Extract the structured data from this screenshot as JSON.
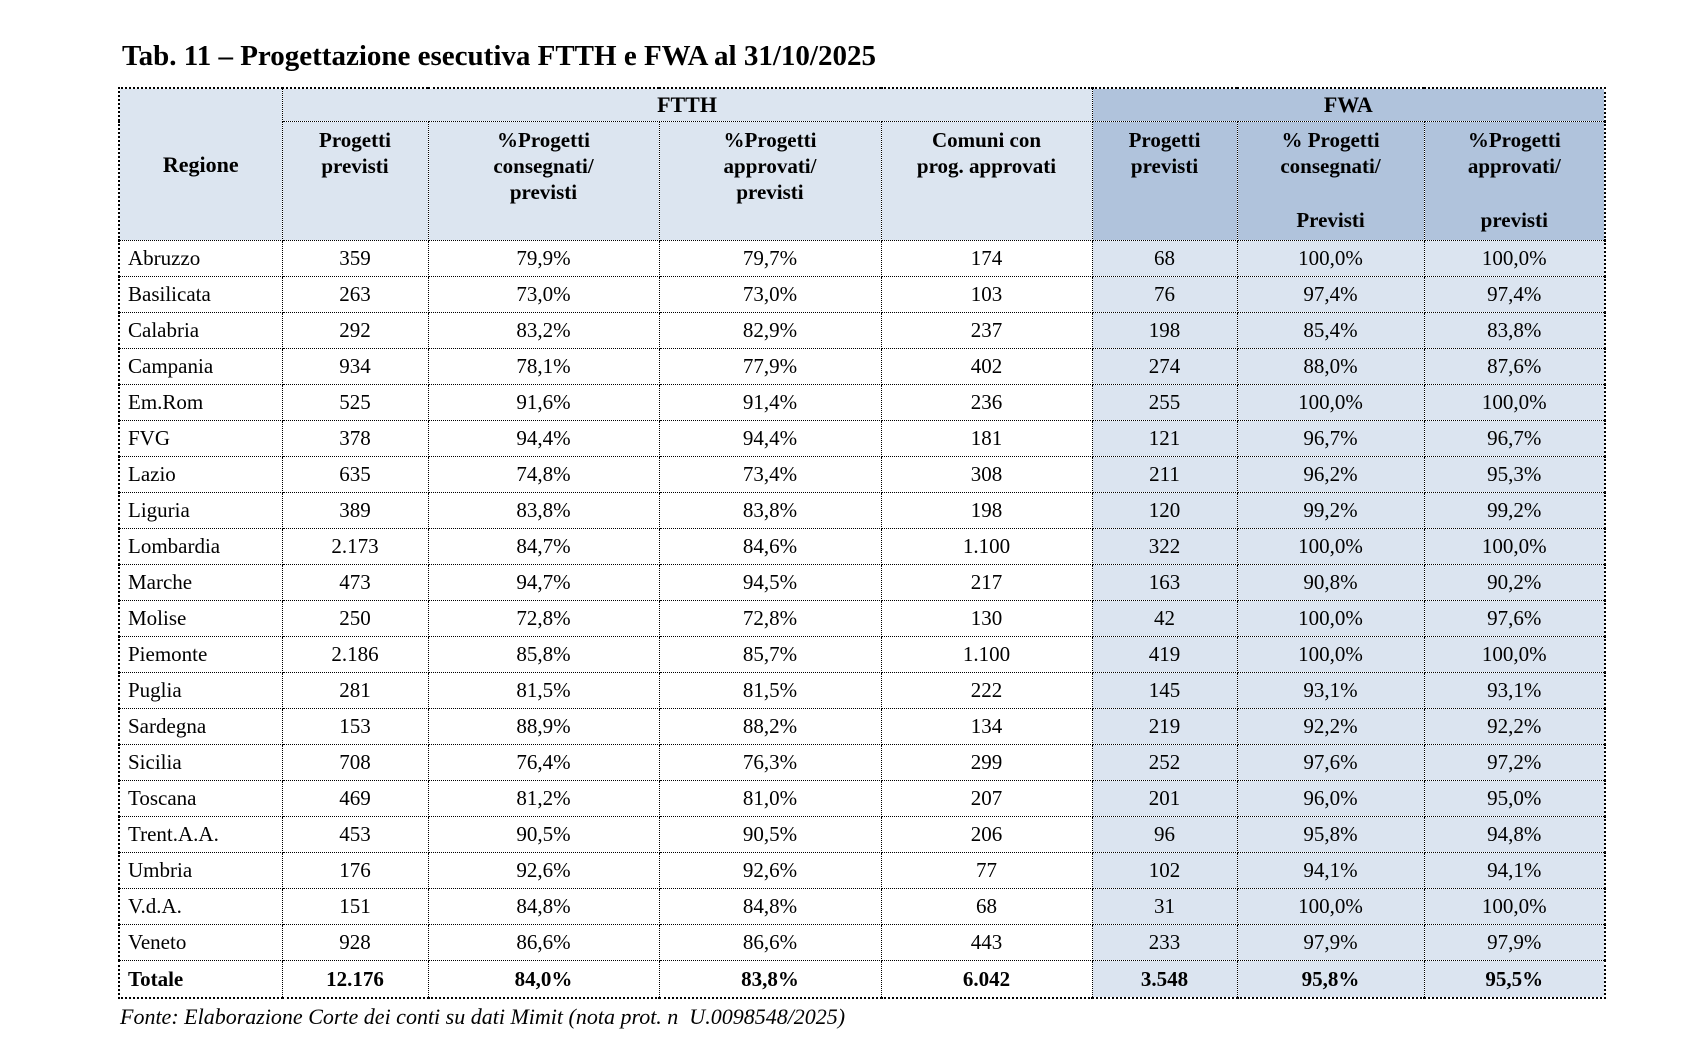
{
  "title": "Tab. 11 – Progettazione esecutiva FTTH e FWA al 31/10/2025",
  "source": "Fonte: Elaborazione Corte dei conti su dati Mimit (nota prot. n  U.0098548/2025)",
  "colors": {
    "header_light": "#dce5f0",
    "header_dark": "#b0c3dc",
    "fwa_cell": "#dbe4f0"
  },
  "header": {
    "region": "Regione",
    "groups": [
      {
        "label": "FTTH"
      },
      {
        "label": "FWA"
      }
    ],
    "cols": [
      {
        "group": "ftth",
        "top": "Progetti\nprevisti",
        "bottom": ""
      },
      {
        "group": "ftth",
        "top": "%Progetti\nconsegnati/\nprevisti",
        "bottom": ""
      },
      {
        "group": "ftth",
        "top": "%Progetti\napprovati/\nprevisti",
        "bottom": ""
      },
      {
        "group": "ftth",
        "top": "Comuni con\nprog. approvati",
        "bottom": ""
      },
      {
        "group": "fwa",
        "top": "Progetti\nprevisti",
        "bottom": ""
      },
      {
        "group": "fwa",
        "top": "% Progetti\nconsegnati/",
        "bottom": "Previsti"
      },
      {
        "group": "fwa",
        "top": "%Progetti\napprovati/",
        "bottom": "previsti"
      }
    ]
  },
  "rows": [
    [
      "Abruzzo",
      "359",
      "79,9%",
      "79,7%",
      "174",
      "68",
      "100,0%",
      "100,0%"
    ],
    [
      "Basilicata",
      "263",
      "73,0%",
      "73,0%",
      "103",
      "76",
      "97,4%",
      "97,4%"
    ],
    [
      "Calabria",
      "292",
      "83,2%",
      "82,9%",
      "237",
      "198",
      "85,4%",
      "83,8%"
    ],
    [
      "Campania",
      "934",
      "78,1%",
      "77,9%",
      "402",
      "274",
      "88,0%",
      "87,6%"
    ],
    [
      "Em.Rom",
      "525",
      "91,6%",
      "91,4%",
      "236",
      "255",
      "100,0%",
      "100,0%"
    ],
    [
      "FVG",
      "378",
      "94,4%",
      "94,4%",
      "181",
      "121",
      "96,7%",
      "96,7%"
    ],
    [
      "Lazio",
      "635",
      "74,8%",
      "73,4%",
      "308",
      "211",
      "96,2%",
      "95,3%"
    ],
    [
      "Liguria",
      "389",
      "83,8%",
      "83,8%",
      "198",
      "120",
      "99,2%",
      "99,2%"
    ],
    [
      "Lombardia",
      "2.173",
      "84,7%",
      "84,6%",
      "1.100",
      "322",
      "100,0%",
      "100,0%"
    ],
    [
      "Marche",
      "473",
      "94,7%",
      "94,5%",
      "217",
      "163",
      "90,8%",
      "90,2%"
    ],
    [
      "Molise",
      "250",
      "72,8%",
      "72,8%",
      "130",
      "42",
      "100,0%",
      "97,6%"
    ],
    [
      "Piemonte",
      "2.186",
      "85,8%",
      "85,7%",
      "1.100",
      "419",
      "100,0%",
      "100,0%"
    ],
    [
      "Puglia",
      "281",
      "81,5%",
      "81,5%",
      "222",
      "145",
      "93,1%",
      "93,1%"
    ],
    [
      "Sardegna",
      "153",
      "88,9%",
      "88,2%",
      "134",
      "219",
      "92,2%",
      "92,2%"
    ],
    [
      "Sicilia",
      "708",
      "76,4%",
      "76,3%",
      "299",
      "252",
      "97,6%",
      "97,2%"
    ],
    [
      "Toscana",
      "469",
      "81,2%",
      "81,0%",
      "207",
      "201",
      "96,0%",
      "95,0%"
    ],
    [
      "Trent.A.A.",
      "453",
      "90,5%",
      "90,5%",
      "206",
      "96",
      "95,8%",
      "94,8%"
    ],
    [
      "Umbria",
      "176",
      "92,6%",
      "92,6%",
      "77",
      "102",
      "94,1%",
      "94,1%"
    ],
    [
      "V.d.A.",
      "151",
      "84,8%",
      "84,8%",
      "68",
      "31",
      "100,0%",
      "100,0%"
    ],
    [
      "Veneto",
      "928",
      "86,6%",
      "86,6%",
      "443",
      "233",
      "97,9%",
      "97,9%"
    ]
  ],
  "total_row": [
    "Totale",
    "12.176",
    "84,0%",
    "83,8%",
    "6.042",
    "3.548",
    "95,8%",
    "95,5%"
  ]
}
